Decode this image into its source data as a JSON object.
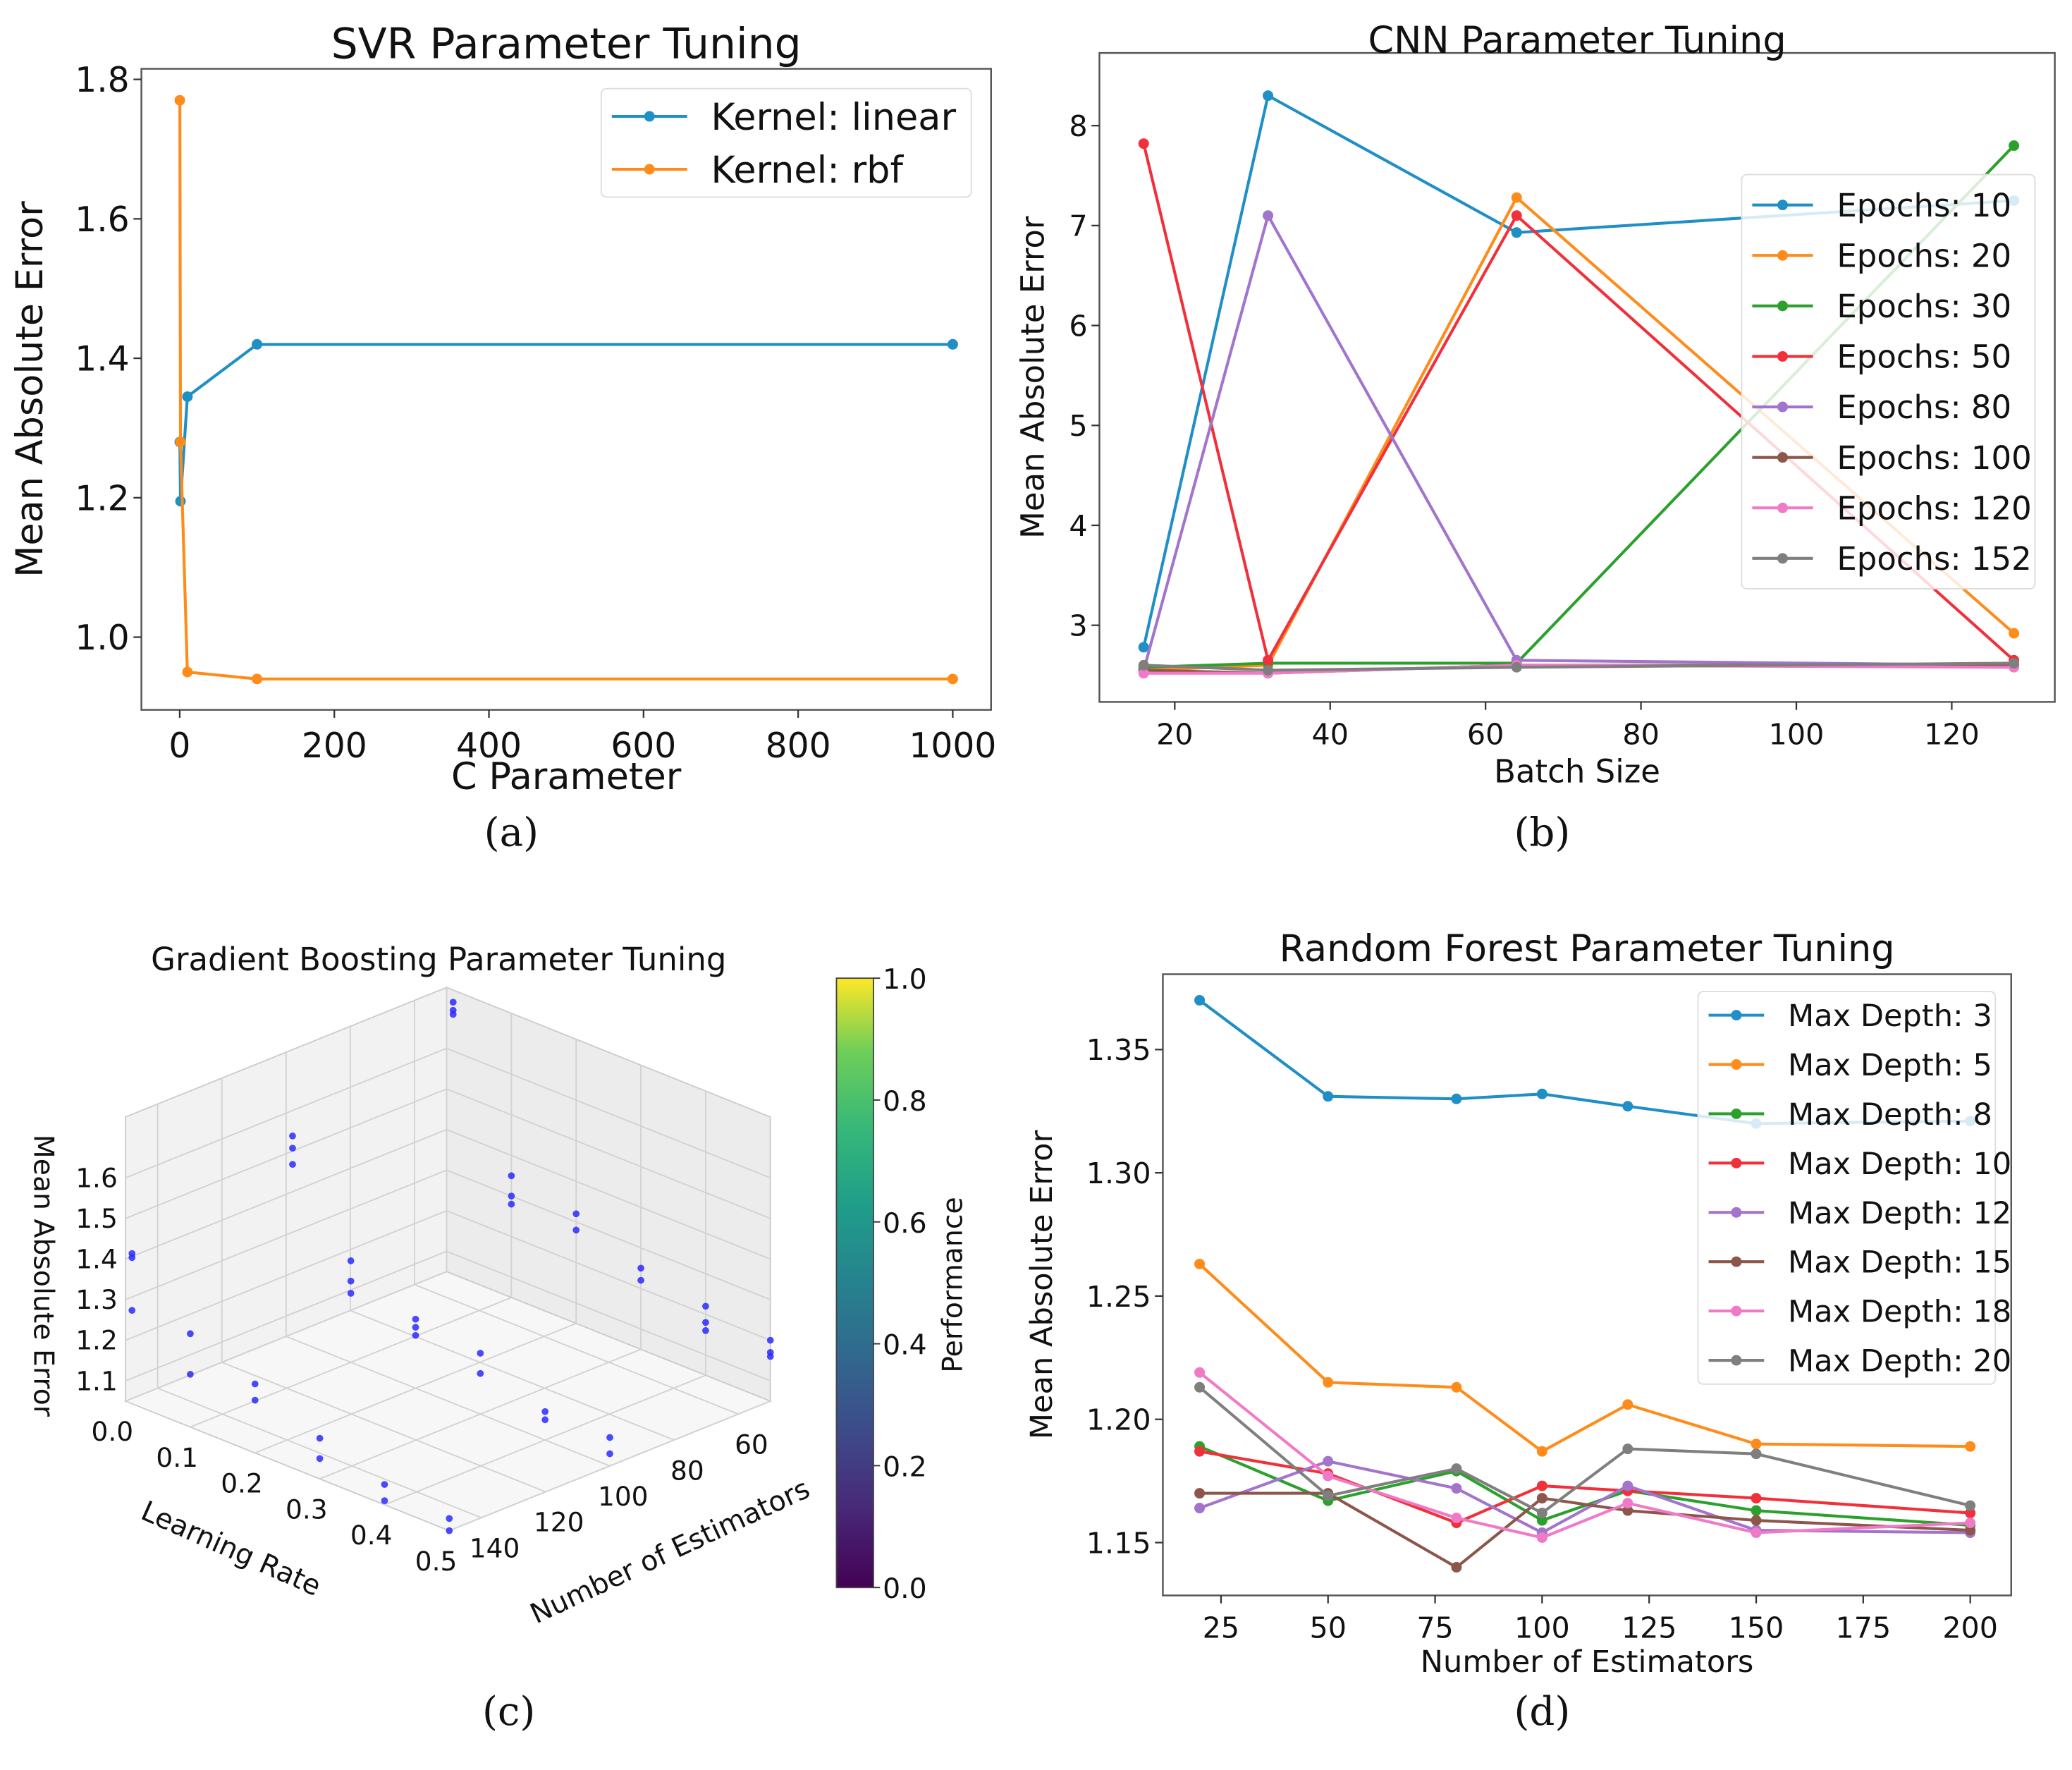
{
  "chart_data": [
    {
      "panel_label": "(a)",
      "type": "line",
      "title": "SVR Parameter Tuning",
      "xlabel": "C Parameter",
      "ylabel": "Mean Absolute Error",
      "xticks": [
        "0",
        "200",
        "400",
        "600",
        "800",
        "1000"
      ],
      "yticks": [
        "1.0",
        "1.2",
        "1.4",
        "1.6",
        "1.8"
      ],
      "xlim": [
        -50,
        1050
      ],
      "ylim": [
        0.9,
        1.82
      ],
      "legend": "upper right",
      "x": [
        0.1,
        1,
        10,
        100,
        1000
      ],
      "series": [
        {
          "name": "Kernel: linear",
          "color": "#1f8fc6",
          "values": [
            1.28,
            1.195,
            1.345,
            1.42,
            1.42
          ]
        },
        {
          "name": "Kernel: rbf",
          "color": "#ff8c1a",
          "values": [
            1.77,
            1.28,
            0.95,
            0.94,
            0.94
          ]
        }
      ]
    },
    {
      "panel_label": "(b)",
      "type": "line",
      "title": "CNN Parameter Tuning",
      "xlabel": "Batch Size",
      "ylabel": "Mean Absolute Error",
      "xticks": [
        "20",
        "40",
        "60",
        "80",
        "100",
        "120"
      ],
      "yticks": [
        "3",
        "4",
        "5",
        "6",
        "7",
        "8"
      ],
      "xlim": [
        10,
        133
      ],
      "ylim": [
        2.3,
        8.7
      ],
      "legend": "center right",
      "x": [
        16,
        32,
        64,
        128
      ],
      "series": [
        {
          "name": "Epochs: 10",
          "color": "#1f8fc6",
          "values": [
            2.78,
            8.3,
            6.93,
            7.25
          ]
        },
        {
          "name": "Epochs: 20",
          "color": "#ff8c1a",
          "values": [
            2.55,
            2.6,
            7.28,
            2.92
          ]
        },
        {
          "name": "Epochs: 30",
          "color": "#2ca02c",
          "values": [
            2.58,
            2.62,
            2.62,
            7.8
          ]
        },
        {
          "name": "Epochs: 50",
          "color": "#f0303a",
          "values": [
            7.82,
            2.65,
            7.1,
            2.65
          ]
        },
        {
          "name": "Epochs: 80",
          "color": "#a274cc",
          "values": [
            2.55,
            7.1,
            2.65,
            2.6
          ]
        },
        {
          "name": "Epochs: 100",
          "color": "#8c564b",
          "values": [
            2.55,
            2.52,
            2.6,
            2.6
          ]
        },
        {
          "name": "Epochs: 120",
          "color": "#f07ac8",
          "values": [
            2.52,
            2.52,
            2.6,
            2.58
          ]
        },
        {
          "name": "Epochs: 152",
          "color": "#7f7f7f",
          "values": [
            2.6,
            2.55,
            2.58,
            2.62
          ]
        }
      ]
    },
    {
      "panel_label": "(c)",
      "type": "scatter3d",
      "title": "Gradient Boosting Parameter Tuning",
      "xlabel": "Learning Rate",
      "ylabel": "Number of Estimators",
      "zlabel": "Mean Absolute Error",
      "xticks": [
        "0.0",
        "0.1",
        "0.2",
        "0.3",
        "0.4",
        "0.5"
      ],
      "yticks": [
        "60",
        "80",
        "100",
        "120",
        "140"
      ],
      "zticks": [
        "1.1",
        "1.2",
        "1.3",
        "1.4",
        "1.5",
        "1.6"
      ],
      "xlim": [
        0,
        0.5
      ],
      "ylim": [
        50,
        150
      ],
      "zlim": [
        1.05,
        1.75
      ],
      "point_color": "#2a2aff",
      "colorbar": {
        "label": "Performance",
        "ticks": [
          "0.0",
          "0.2",
          "0.4",
          "0.6",
          "0.8",
          "1.0"
        ]
      },
      "points": [
        [
          0.01,
          50,
          1.72
        ],
        [
          0.01,
          50,
          1.7
        ],
        [
          0.01,
          50,
          1.69
        ],
        [
          0.1,
          50,
          1.35
        ],
        [
          0.1,
          50,
          1.3
        ],
        [
          0.1,
          50,
          1.28
        ],
        [
          0.2,
          50,
          1.32
        ],
        [
          0.2,
          50,
          1.28
        ],
        [
          0.3,
          50,
          1.25
        ],
        [
          0.3,
          50,
          1.22
        ],
        [
          0.4,
          50,
          1.22
        ],
        [
          0.4,
          50,
          1.18
        ],
        [
          0.4,
          50,
          1.16
        ],
        [
          0.5,
          50,
          1.2
        ],
        [
          0.5,
          50,
          1.17
        ],
        [
          0.5,
          50,
          1.16
        ],
        [
          0.01,
          100,
          1.55
        ],
        [
          0.01,
          100,
          1.52
        ],
        [
          0.01,
          100,
          1.48
        ],
        [
          0.1,
          100,
          1.3
        ],
        [
          0.1,
          100,
          1.25
        ],
        [
          0.1,
          100,
          1.22
        ],
        [
          0.2,
          100,
          1.22
        ],
        [
          0.2,
          100,
          1.2
        ],
        [
          0.2,
          100,
          1.18
        ],
        [
          0.3,
          100,
          1.2
        ],
        [
          0.3,
          100,
          1.15
        ],
        [
          0.4,
          100,
          1.12
        ],
        [
          0.4,
          100,
          1.1
        ],
        [
          0.5,
          100,
          1.12
        ],
        [
          0.5,
          100,
          1.08
        ],
        [
          0.01,
          150,
          1.42
        ],
        [
          0.01,
          150,
          1.41
        ],
        [
          0.01,
          150,
          1.28
        ],
        [
          0.1,
          150,
          1.28
        ],
        [
          0.1,
          150,
          1.18
        ],
        [
          0.2,
          150,
          1.22
        ],
        [
          0.2,
          150,
          1.18
        ],
        [
          0.3,
          150,
          1.15
        ],
        [
          0.3,
          150,
          1.1
        ],
        [
          0.4,
          150,
          1.1
        ],
        [
          0.4,
          150,
          1.06
        ],
        [
          0.5,
          150,
          1.08
        ],
        [
          0.5,
          150,
          1.05
        ]
      ]
    },
    {
      "panel_label": "(d)",
      "type": "line",
      "title": "Random Forest Parameter Tuning",
      "xlabel": "Number of Estimators",
      "ylabel": "Mean Absolute Error",
      "xticks": [
        "25",
        "50",
        "75",
        "100",
        "125",
        "150",
        "175",
        "200"
      ],
      "yticks": [
        "1.15",
        "1.20",
        "1.25",
        "1.30",
        "1.35"
      ],
      "xlim": [
        11,
        209
      ],
      "ylim": [
        1.128,
        1.381
      ],
      "legend": "upper right",
      "x": [
        20,
        50,
        80,
        100,
        120,
        150,
        200
      ],
      "series": [
        {
          "name": "Max Depth: 3",
          "color": "#1f8fc6",
          "values": [
            1.37,
            1.331,
            1.33,
            1.332,
            1.327,
            1.32,
            1.321
          ]
        },
        {
          "name": "Max Depth: 5",
          "color": "#ff8c1a",
          "values": [
            1.263,
            1.215,
            1.213,
            1.187,
            1.206,
            1.19,
            1.189
          ]
        },
        {
          "name": "Max Depth: 8",
          "color": "#2ca02c",
          "values": [
            1.189,
            1.167,
            1.179,
            1.159,
            1.171,
            1.163,
            1.157
          ]
        },
        {
          "name": "Max Depth: 10",
          "color": "#f0303a",
          "values": [
            1.187,
            1.178,
            1.158,
            1.173,
            1.171,
            1.168,
            1.162
          ]
        },
        {
          "name": "Max Depth: 12",
          "color": "#a274cc",
          "values": [
            1.164,
            1.183,
            1.172,
            1.154,
            1.173,
            1.155,
            1.154
          ]
        },
        {
          "name": "Max Depth: 15",
          "color": "#8c564b",
          "values": [
            1.17,
            1.17,
            1.14,
            1.168,
            1.163,
            1.159,
            1.155
          ]
        },
        {
          "name": "Max Depth: 18",
          "color": "#f07ac8",
          "values": [
            1.219,
            1.177,
            1.16,
            1.152,
            1.166,
            1.154,
            1.158
          ]
        },
        {
          "name": "Max Depth: 20",
          "color": "#7f7f7f",
          "values": [
            1.213,
            1.169,
            1.18,
            1.162,
            1.188,
            1.186,
            1.165
          ]
        }
      ]
    }
  ]
}
